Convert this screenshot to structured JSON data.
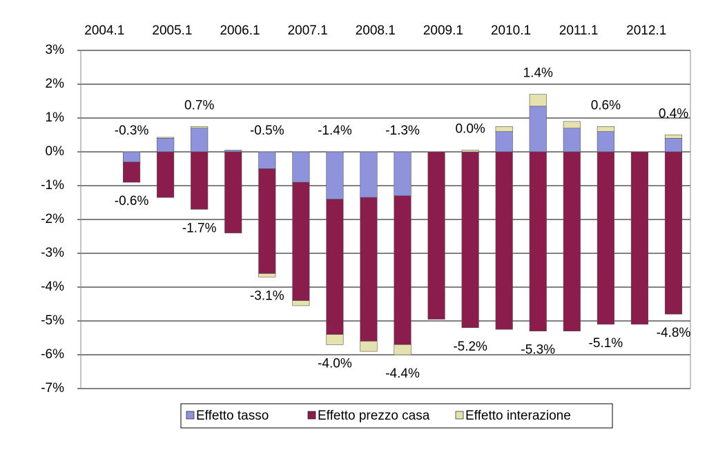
{
  "chart_data": {
    "type": "bar",
    "stacked": true,
    "categories": [
      "2004.1",
      null,
      "2005.1",
      null,
      "2006.1",
      null,
      "2007.1",
      null,
      "2008.1",
      null,
      "2009.1",
      null,
      "2010.1",
      null,
      "2011.1",
      null,
      "2012.1",
      null
    ],
    "series": [
      {
        "name": "Effetto tasso",
        "color": "#8f93dc",
        "values": [
          null,
          -0.3,
          0.4,
          0.7,
          0.05,
          -0.5,
          -0.9,
          -1.4,
          -1.35,
          -1.3,
          0.0,
          0.0,
          0.6,
          1.35,
          0.7,
          0.6,
          0.0,
          0.4
        ],
        "value_labels": [
          null,
          "-0.3%",
          null,
          "0.7%",
          null,
          "-0.5%",
          null,
          "-1.4%",
          null,
          "-1.3%",
          null,
          "0.0%",
          null,
          "1.4%",
          null,
          "0.6%",
          null,
          "0.4%"
        ]
      },
      {
        "name": "Effetto prezzo casa",
        "color": "#8b1d4c",
        "values": [
          null,
          -0.6,
          -1.35,
          -1.7,
          -2.4,
          -3.1,
          -3.5,
          -4.0,
          -4.25,
          -4.4,
          -4.95,
          -5.2,
          -5.25,
          -5.3,
          -5.3,
          -5.1,
          -5.1,
          -4.8
        ],
        "value_labels": [
          null,
          "-0.6%",
          null,
          "-1.7%",
          null,
          "-3.1%",
          null,
          "-4.0%",
          null,
          "-4.4%",
          null,
          "-5.2%",
          null,
          "-5.3%",
          null,
          "-5.1%",
          null,
          "-4.8%"
        ]
      },
      {
        "name": "Effetto interazione",
        "color": "#e6e2b0",
        "values": [
          null,
          0,
          0.03,
          0.05,
          0,
          -0.1,
          -0.15,
          -0.3,
          -0.3,
          -0.3,
          0,
          0.05,
          0.15,
          0.35,
          0.2,
          0.15,
          0,
          0.1
        ]
      }
    ],
    "ylim": [
      -7,
      3
    ],
    "yticks": [
      {
        "value": -7,
        "label": "-7%"
      },
      {
        "value": -6,
        "label": "-6%"
      },
      {
        "value": -5,
        "label": "-5%"
      },
      {
        "value": -4,
        "label": "-4%"
      },
      {
        "value": -3,
        "label": "-3%"
      },
      {
        "value": -2,
        "label": "-2%"
      },
      {
        "value": -1,
        "label": "-1%"
      },
      {
        "value": 0,
        "label": "0%"
      },
      {
        "value": 1,
        "label": "1%"
      },
      {
        "value": 2,
        "label": "2%"
      },
      {
        "value": 3,
        "label": "3%"
      }
    ],
    "grid": true,
    "legend": "bottom"
  }
}
